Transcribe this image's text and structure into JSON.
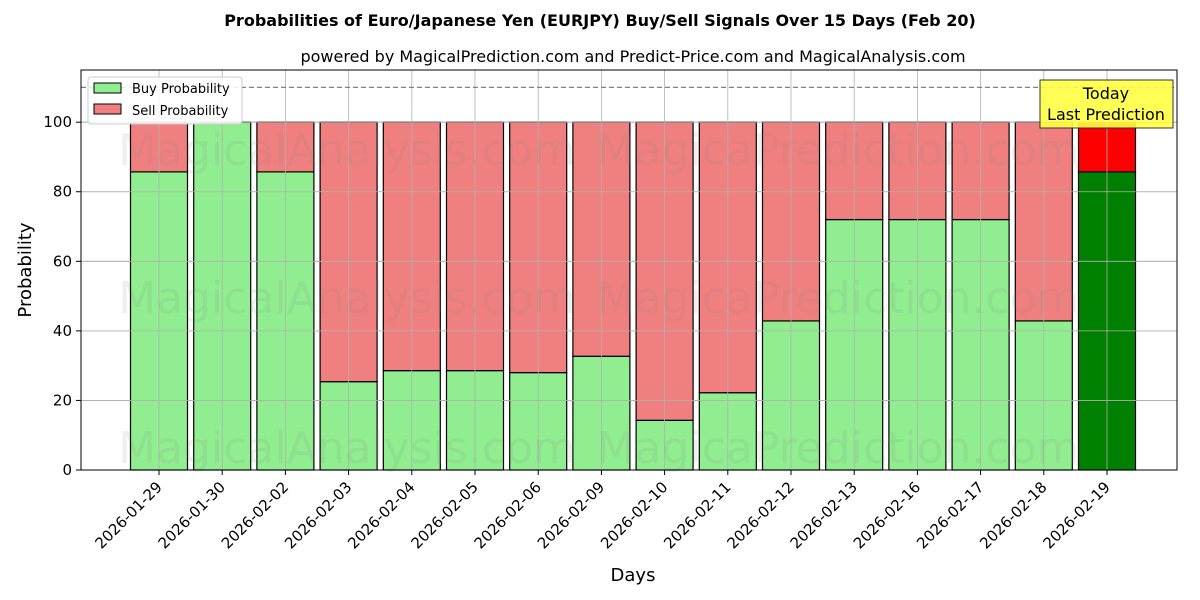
{
  "chart_data": {
    "type": "bar",
    "stacked": true,
    "title": "Probabilities of Euro/Japanese Yen (EURJPY) Buy/Sell Signals Over 15 Days (Feb 20)",
    "subtitle": "powered by MagicalPrediction.com and Predict-Price.com and MagicalAnalysis.com",
    "xlabel": "Days",
    "ylabel": "Probability",
    "ylim": [
      0,
      115
    ],
    "yticks": [
      0,
      20,
      40,
      60,
      80,
      100
    ],
    "grid": true,
    "reference_line": {
      "y": 110,
      "style": "dashed",
      "color": "#808080"
    },
    "categories": [
      "2026-01-29",
      "2026-01-30",
      "2026-02-02",
      "2026-02-03",
      "2026-02-04",
      "2026-02-05",
      "2026-02-06",
      "2026-02-09",
      "2026-02-10",
      "2026-02-11",
      "2026-02-12",
      "2026-02-13",
      "2026-02-16",
      "2026-02-17",
      "2026-02-18",
      "2026-02-19"
    ],
    "series": [
      {
        "name": "Buy Probability",
        "color": "#90ee90",
        "values": [
          85.71,
          100,
          85.71,
          25.4,
          28.57,
          28.57,
          28.0,
          32.7,
          14.29,
          22.22,
          42.86,
          72.0,
          72.0,
          72.0,
          42.86,
          85.71
        ]
      },
      {
        "name": "Sell Probability",
        "color": "#f08080",
        "values": [
          14.29,
          0,
          14.29,
          74.6,
          71.43,
          71.43,
          72.0,
          67.3,
          85.71,
          77.78,
          57.14,
          28.0,
          28.0,
          28.0,
          57.14,
          14.29
        ]
      }
    ],
    "highlight": {
      "index": 15,
      "buy_color": "#008000",
      "sell_color": "#ff0000"
    },
    "legend": {
      "position": "upper left",
      "entries": [
        "Buy Probability",
        "Sell Probability"
      ]
    },
    "annotation": {
      "lines": [
        "Today",
        "Last Prediction"
      ],
      "background": "#ffff44"
    },
    "watermarks": [
      "MagicalAnalysis.com",
      "MagicaPrediction.com"
    ]
  }
}
